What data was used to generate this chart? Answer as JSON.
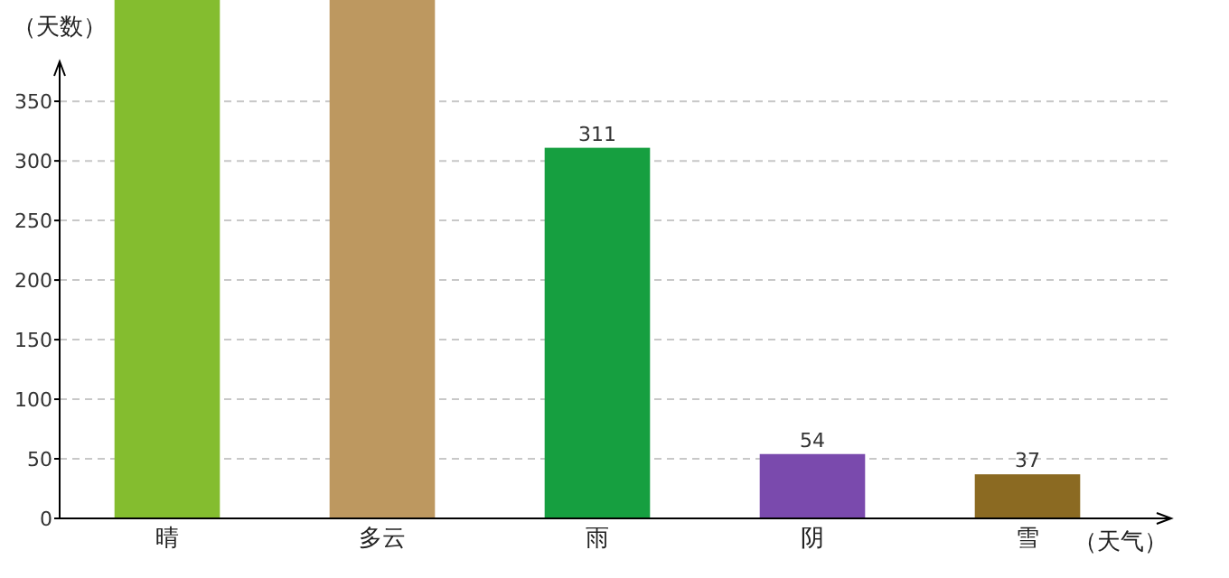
{
  "chart_data": {
    "type": "bar",
    "xlabel": "（天气）",
    "ylabel": "（天数）",
    "categories": [
      "晴",
      "多云",
      "雨",
      "阴",
      "雪"
    ],
    "values": [
      435,
      435,
      311,
      54,
      37
    ],
    "colors": [
      "#84bd2f",
      "#bd9860",
      "#169f40",
      "#7a4aad",
      "#8b6a22"
    ],
    "value_labels": [
      null,
      null,
      "311",
      "54",
      "37"
    ],
    "ylim": [
      0,
      435
    ],
    "yticks": [
      0,
      50,
      100,
      150,
      200,
      250,
      300,
      350
    ],
    "grid": "y"
  }
}
